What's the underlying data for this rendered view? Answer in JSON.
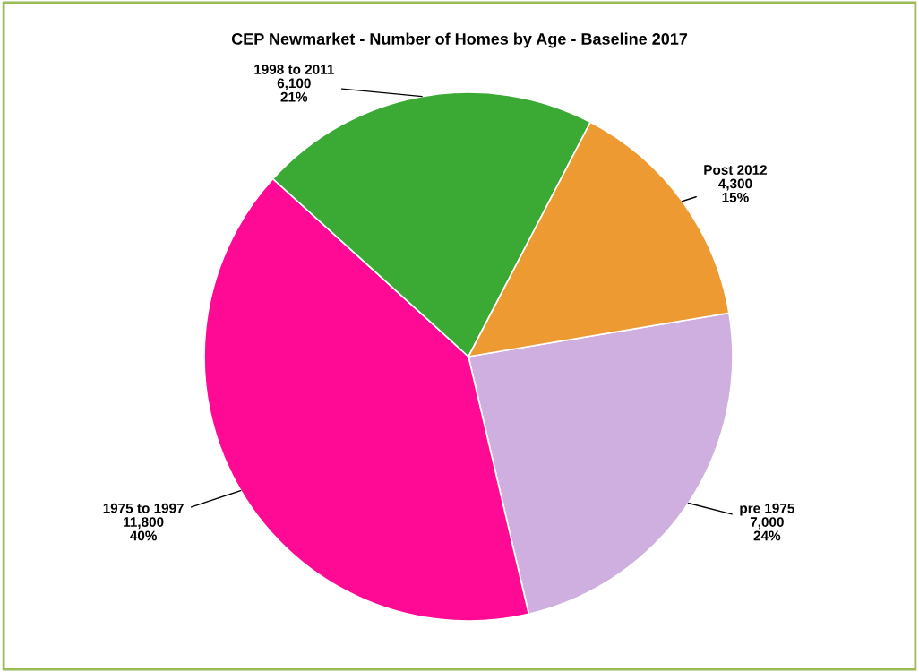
{
  "chart_data": {
    "type": "pie",
    "title": "CEP Newmarket - Number of Homes by Age - Baseline 2017",
    "categories": [
      "pre 1975",
      "1975 to 1997",
      "1998 to 2011",
      "Post 2012"
    ],
    "values": [
      7000,
      11800,
      6100,
      4300
    ],
    "value_labels": [
      "7,000\n24%",
      "11,800\n40%",
      "6,100\n21%",
      "4,300\n15%"
    ],
    "colors": [
      "#cfaee0",
      "#ff0a94",
      "#3aaa35",
      "#ee9a33"
    ],
    "legend": false
  }
}
